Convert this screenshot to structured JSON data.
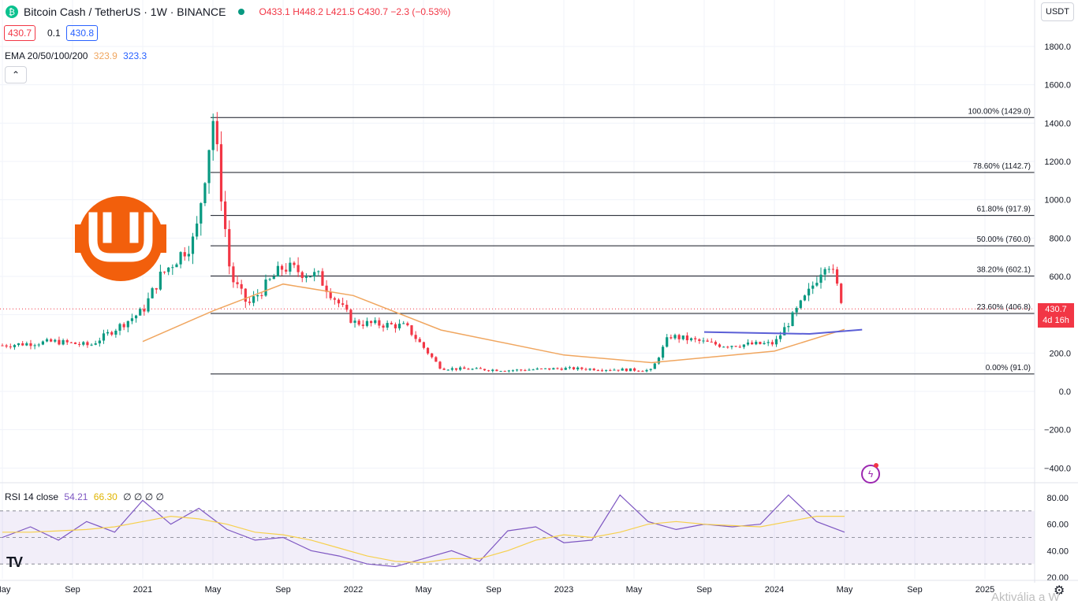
{
  "header": {
    "symbol": "Bitcoin Cash / TetherUS · 1W · BINANCE",
    "open": "O433.1",
    "high": "H448.2",
    "low": "L421.5",
    "close": "C430.7",
    "change": "−2.3 (−0.53%)",
    "bid": "430.7",
    "spread": "0.1",
    "ask": "430.8",
    "ema_label": "EMA 20/50/100/200",
    "ema_val1": "323.9",
    "ema_val2": "323.3",
    "collapse": "⌃",
    "currency": "USDT",
    "rsi_label": "RSI 14 close",
    "rsi_val": "54.21",
    "rsi_ma": "66.30",
    "rsi_extra": "∅ ∅ ∅ ∅",
    "price_tag": "430.7",
    "time_left": "4d 16h",
    "watermark": "Aktivália a W"
  },
  "colors": {
    "up": "#089981",
    "down": "#f23645",
    "ema": "#f0a65f",
    "rsi": "#7e57c2",
    "rsi_ma": "#f6d04d",
    "trendline": "#5b5fd6",
    "logo": "#f25f0c"
  },
  "icons": [
    "bitcoin-cash-icon",
    "tradingview-logo-icon",
    "bolt-icon",
    "gear-icon",
    "bch-watermark-logo-icon"
  ],
  "chart_data": [
    {
      "type": "candlestick",
      "title": "",
      "y_ticks": [
        1800,
        1600,
        1400,
        1200,
        1000,
        800,
        600,
        400,
        200,
        0,
        -200,
        -400
      ],
      "y_tick_labels": [
        "1800.0",
        "1600.0",
        "1400.0",
        "1200.0",
        "1000.0",
        "800.0",
        "600.0",
        "400.0",
        "200.0",
        "0.0",
        "−200.0",
        "−400.0"
      ],
      "ylim": [
        -470,
        1990
      ],
      "x_labels": [
        "May",
        "Sep",
        "2021",
        "May",
        "Sep",
        "2022",
        "May",
        "Sep",
        "2023",
        "May",
        "Sep",
        "2024",
        "May",
        "Sep",
        "2025"
      ],
      "fib_levels": [
        {
          "label": "100.00% (1429.0)",
          "value": 1429.0
        },
        {
          "label": "78.60% (1142.7)",
          "value": 1142.7
        },
        {
          "label": "61.80% (917.9)",
          "value": 917.9
        },
        {
          "label": "50.00% (760.0)",
          "value": 760.0
        },
        {
          "label": "38.20% (602.1)",
          "value": 602.1
        },
        {
          "label": "23.60% (406.8)",
          "value": 406.8
        },
        {
          "label": "0.00% (91.0)",
          "value": 91.0
        }
      ],
      "current_price": 430.7,
      "close_approx": [
        {
          "date": "2020-05",
          "close": 240
        },
        {
          "date": "2020-08",
          "close": 260
        },
        {
          "date": "2020-10",
          "close": 240
        },
        {
          "date": "2021-01",
          "close": 420
        },
        {
          "date": "2021-02",
          "close": 600
        },
        {
          "date": "2021-04",
          "close": 800
        },
        {
          "date": "2021-05",
          "close": 1429
        },
        {
          "date": "2021-06",
          "close": 600
        },
        {
          "date": "2021-07",
          "close": 450
        },
        {
          "date": "2021-09",
          "close": 650
        },
        {
          "date": "2021-11",
          "close": 600
        },
        {
          "date": "2022-01",
          "close": 360
        },
        {
          "date": "2022-04",
          "close": 340
        },
        {
          "date": "2022-06",
          "close": 120
        },
        {
          "date": "2022-10",
          "close": 110
        },
        {
          "date": "2023-01",
          "close": 120
        },
        {
          "date": "2023-06",
          "close": 110
        },
        {
          "date": "2023-07",
          "close": 290
        },
        {
          "date": "2023-10",
          "close": 240
        },
        {
          "date": "2024-01",
          "close": 250
        },
        {
          "date": "2024-03",
          "close": 520
        },
        {
          "date": "2024-04",
          "close": 700
        },
        {
          "date": "2024-05",
          "close": 430.7
        }
      ],
      "ema_approx": [
        {
          "date": "2021-01",
          "value": 260
        },
        {
          "date": "2021-05",
          "value": 420
        },
        {
          "date": "2021-09",
          "value": 560
        },
        {
          "date": "2022-01",
          "value": 500
        },
        {
          "date": "2022-06",
          "value": 320
        },
        {
          "date": "2023-01",
          "value": 190
        },
        {
          "date": "2023-06",
          "value": 150
        },
        {
          "date": "2024-01",
          "value": 210
        },
        {
          "date": "2024-05",
          "value": 323.9
        }
      ]
    },
    {
      "type": "line",
      "title": "",
      "series": [
        {
          "name": "RSI 14 close",
          "values": [
            50,
            58,
            48,
            62,
            54,
            78,
            60,
            72,
            56,
            48,
            50,
            40,
            36,
            30,
            28,
            34,
            40,
            32,
            55,
            58,
            46,
            48,
            82,
            62,
            56,
            60,
            58,
            60,
            82,
            62,
            54
          ]
        },
        {
          "name": "RSI MA",
          "values": [
            54,
            54,
            55,
            56,
            58,
            62,
            66,
            64,
            60,
            54,
            52,
            48,
            42,
            36,
            32,
            31,
            34,
            34,
            40,
            48,
            52,
            50,
            54,
            60,
            62,
            60,
            59,
            58,
            62,
            66,
            66
          ]
        }
      ],
      "y_ticks": [
        80,
        60,
        40,
        20
      ],
      "y_tick_labels": [
        "80.00",
        "60.00",
        "40.00",
        "20.00"
      ],
      "bands": [
        30,
        50,
        70
      ]
    }
  ]
}
